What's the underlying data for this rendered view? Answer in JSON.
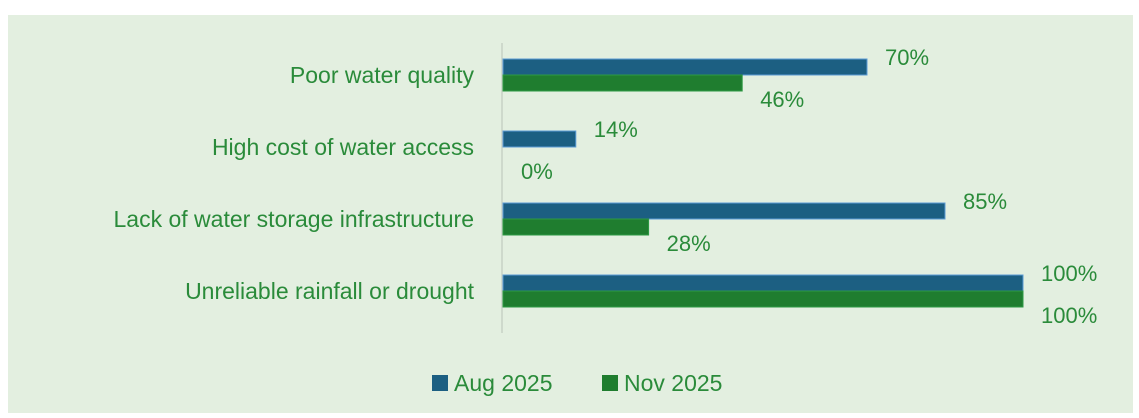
{
  "chart_data": {
    "type": "bar",
    "orientation": "horizontal",
    "categories": [
      "Poor water quality",
      "High cost of water access",
      "Lack of water storage infrastructure",
      "Unreliable rainfall or drought"
    ],
    "series": [
      {
        "name": "Aug 2025",
        "color": "#1c5f82",
        "values": [
          70,
          14,
          85,
          100
        ],
        "labels": [
          "70%",
          "14%",
          "85%",
          "100%"
        ]
      },
      {
        "name": "Nov 2025",
        "color": "#1f7d2f",
        "values": [
          46,
          0,
          28,
          100
        ],
        "labels": [
          "46%",
          "0%",
          "28%",
          "100%"
        ]
      }
    ],
    "xlim": [
      0,
      100
    ],
    "grid": false,
    "legend_position": "bottom"
  },
  "colors": {
    "background": "#e3efe0",
    "text": "#2a8b3a",
    "axis": "#c8d2c5"
  }
}
